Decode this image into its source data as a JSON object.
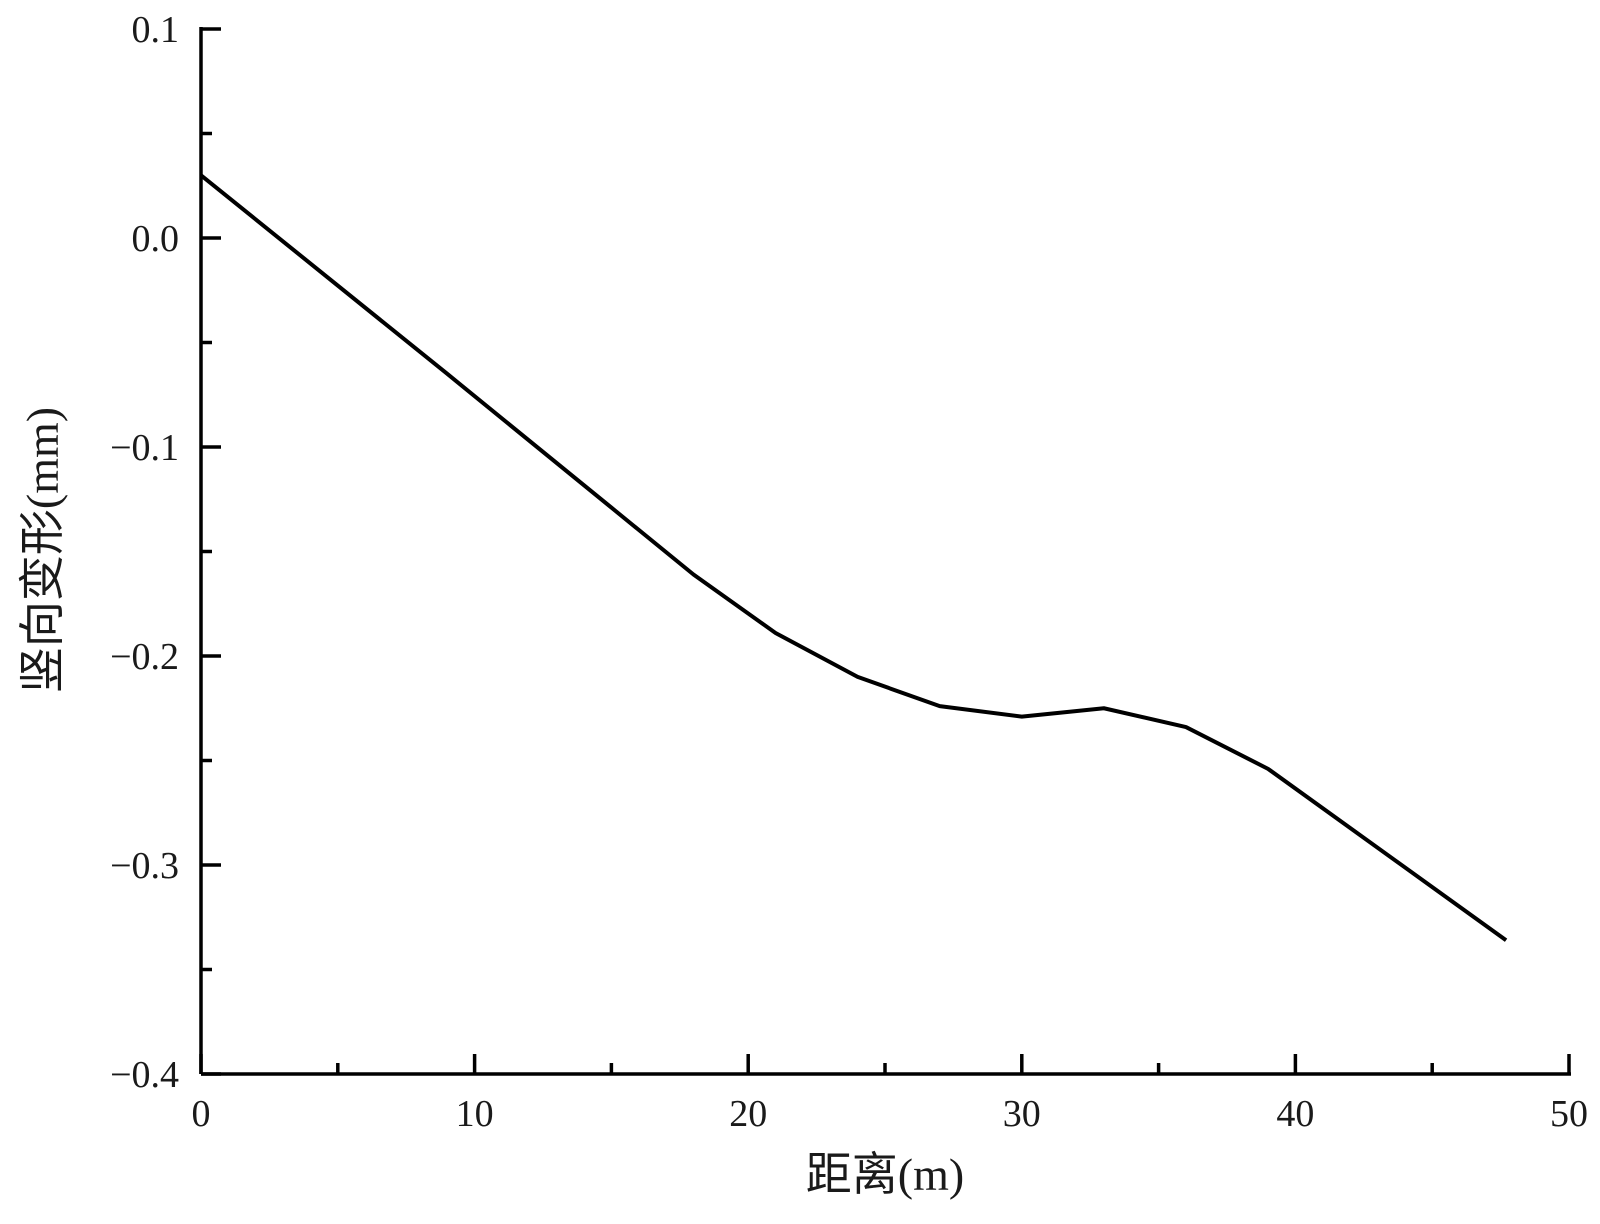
{
  "chart_data": {
    "type": "line",
    "x_label": "距离(m)",
    "y_label": "竖向变形(mm)",
    "series": [
      {
        "color": "#000000",
        "x": [
          0,
          9,
          15,
          18,
          21,
          24,
          27,
          30,
          33,
          36,
          39,
          47.7
        ],
        "values": [
          0.03,
          -0.065,
          -0.129,
          -0.161,
          -0.189,
          -0.21,
          -0.224,
          -0.229,
          -0.225,
          -0.234,
          -0.254,
          -0.336
        ]
      }
    ],
    "xlim": [
      0,
      50
    ],
    "xticks": [
      0,
      10,
      20,
      30,
      40,
      50
    ],
    "xminorticks": [
      5,
      15,
      25,
      35,
      45
    ],
    "ylim": [
      -0.4,
      0.1
    ],
    "yticks": [
      0.1,
      {
        "value": 0,
        "label": "0.0"
      },
      {
        "value": -0.1,
        "label": "−0.1"
      },
      {
        "value": -0.2,
        "label": "−0.2"
      },
      {
        "value": -0.3,
        "label": "−0.3"
      },
      {
        "value": -0.4,
        "label": "−0.4"
      }
    ],
    "yminorticks": [
      0.05,
      -0.05,
      -0.15,
      -0.25,
      -0.35
    ],
    "grid": false
  }
}
